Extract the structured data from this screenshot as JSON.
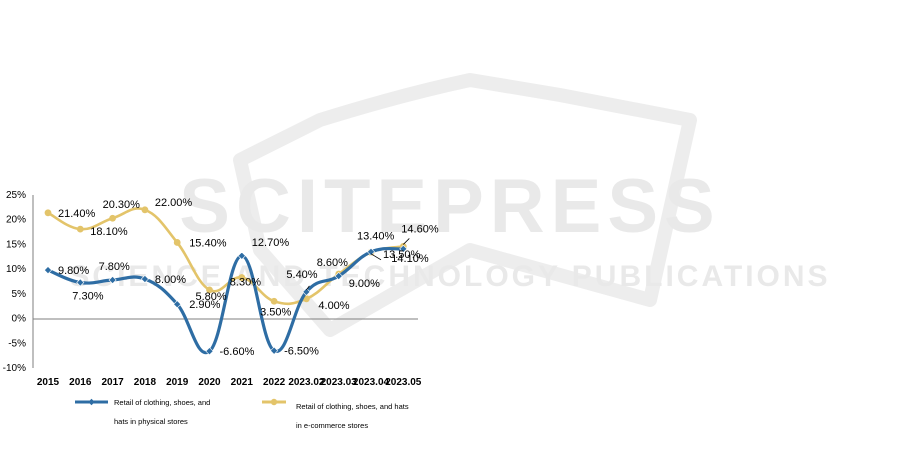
{
  "watermark": {
    "brand": "SCITEPRESS",
    "tagline": "SCIENCE AND TECHNOLOGY PUBLICATIONS"
  },
  "chart_data": {
    "type": "line",
    "categories": [
      "2015",
      "2016",
      "2017",
      "2018",
      "2019",
      "2020",
      "2021",
      "2022",
      "2023.02",
      "2023.03",
      "2023.04",
      "2023.05"
    ],
    "ylim": [
      -10,
      25
    ],
    "yticks": [
      "25%",
      "20%",
      "15%",
      "10%",
      "5%",
      "0%",
      "-5%",
      "-10%"
    ],
    "grid": false,
    "legend_position": "bottom",
    "series": [
      {
        "name_line1": "Retail of clothing, shoes, and",
        "name_line2": "hats in physical stores",
        "color": "#2e6da4",
        "marker": "diamond",
        "values": [
          9.8,
          7.3,
          7.8,
          8.0,
          2.9,
          -6.6,
          12.7,
          -6.5,
          5.4,
          8.6,
          13.5,
          14.1
        ],
        "labels": [
          "9.80%",
          "7.30%",
          "7.80%",
          "8.00%",
          "2.90%",
          "-6.60%",
          "12.70%",
          "-6.50%",
          "5.40%",
          "8.60%",
          "13.50%",
          "14.10%"
        ]
      },
      {
        "name_line1": "Retail of clothing, shoes, and hats",
        "name_line2": "in e-commerce stores",
        "color": "#e3c46a",
        "marker": "circle",
        "values": [
          21.4,
          18.1,
          20.3,
          22.0,
          15.4,
          5.8,
          8.3,
          3.5,
          4.0,
          9.0,
          13.4,
          14.6
        ],
        "labels": [
          "21.40%",
          "18.10%",
          "20.30%",
          "22.00%",
          "15.40%",
          "5.80%",
          "8.30%",
          "3.50%",
          "4.00%",
          "9.00%",
          "13.40%",
          "14.60%"
        ]
      }
    ]
  }
}
